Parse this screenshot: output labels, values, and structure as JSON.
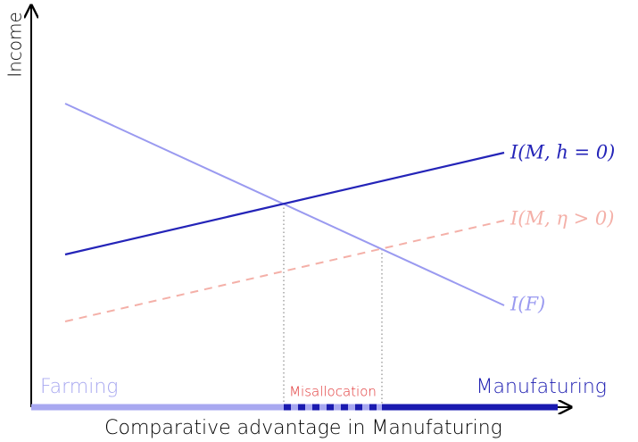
{
  "axes": {
    "y_label": "Income",
    "x_label": "Comparative advantage in Manufaturing"
  },
  "curves": [
    {
      "label": "I(M, h = 0)"
    },
    {
      "label": "I(M, η > 0)"
    },
    {
      "label": "I(F)"
    }
  ],
  "regions": {
    "left": "Farming",
    "middle": "Misallocation",
    "right": "Manufaturing"
  }
}
